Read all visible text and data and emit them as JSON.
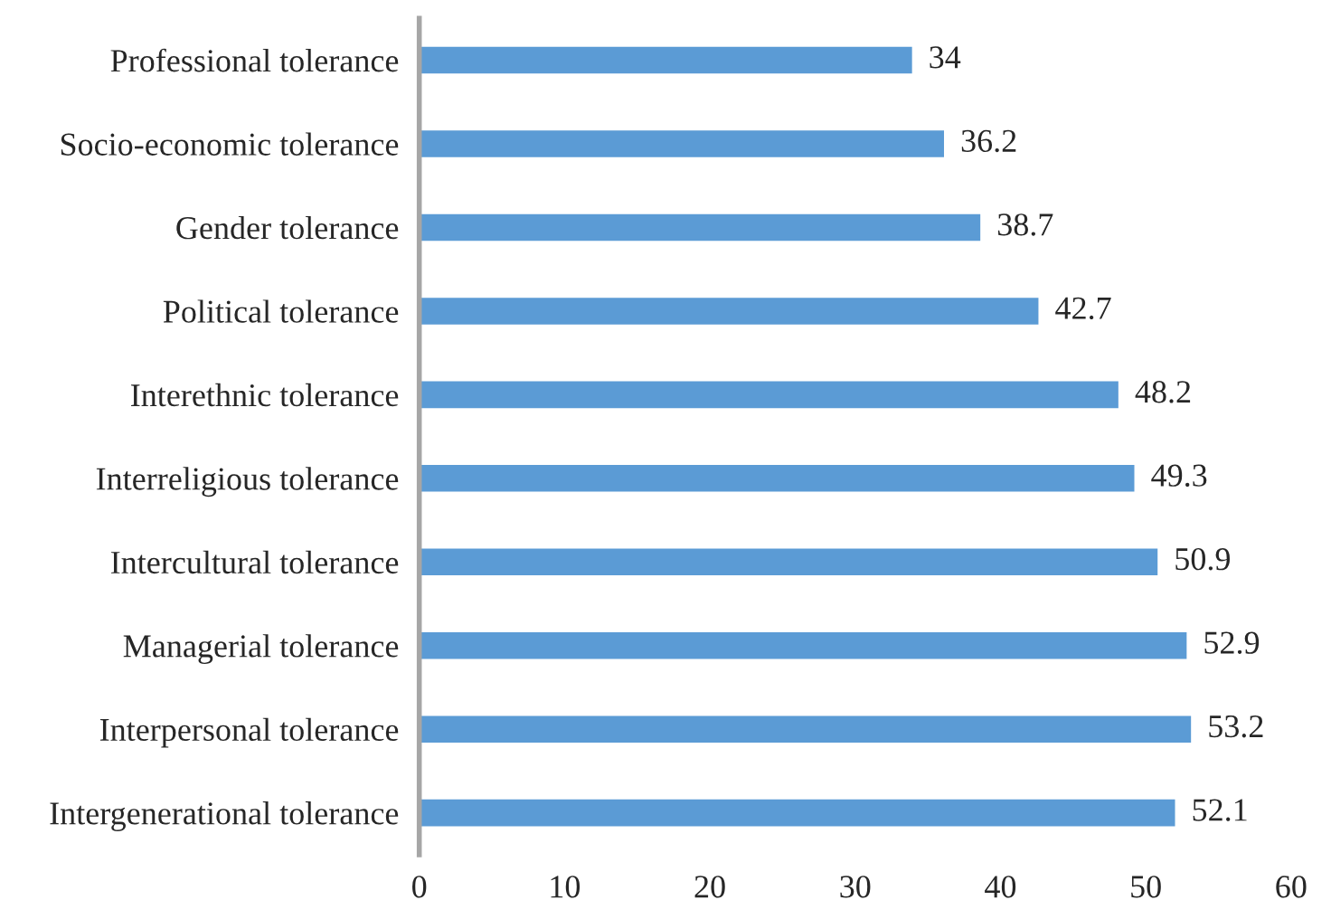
{
  "chart_data": {
    "type": "bar",
    "orientation": "horizontal",
    "categories": [
      "Professional tolerance",
      "Socio-economic tolerance",
      "Gender tolerance",
      "Political tolerance",
      "Interethnic tolerance",
      "Interreligious tolerance",
      "Intercultural tolerance",
      "Managerial tolerance",
      "Interpersonal tolerance",
      "Intergenerational tolerance"
    ],
    "values": [
      34,
      36.2,
      38.7,
      42.7,
      48.2,
      49.3,
      50.9,
      52.9,
      53.2,
      52.1
    ],
    "color": "#5b9bd5",
    "xlim": [
      0,
      60
    ],
    "xticks": [
      0,
      10,
      20,
      30,
      40,
      50,
      60
    ],
    "data_labels": true,
    "grid": false,
    "legend": false
  }
}
